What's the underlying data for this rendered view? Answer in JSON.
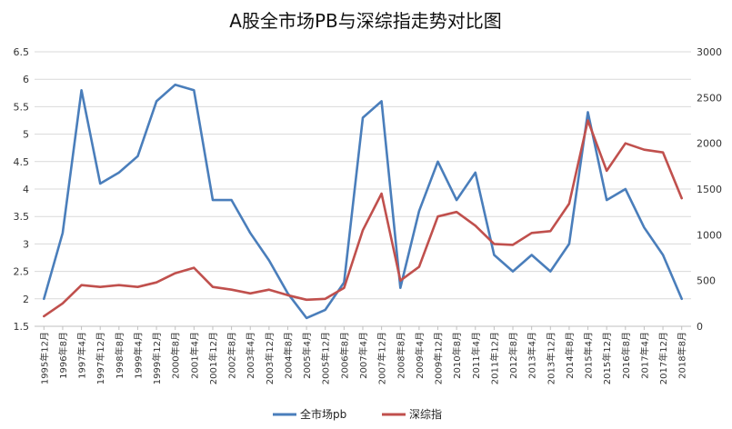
{
  "chart_data": {
    "type": "line",
    "title": "A股全市场PB与深综指走势对比图",
    "x": [
      "1995年12月",
      "1996年8月",
      "1997年4月",
      "1997年12月",
      "1998年8月",
      "1999年4月",
      "1999年12月",
      "2000年8月",
      "2001年4月",
      "2001年12月",
      "2002年8月",
      "2003年4月",
      "2003年12月",
      "2004年8月",
      "2005年4月",
      "2005年12月",
      "2006年8月",
      "2007年4月",
      "2007年12月",
      "2008年8月",
      "2009年4月",
      "2009年12月",
      "2010年8月",
      "2011年4月",
      "2011年12月",
      "2012年8月",
      "2013年4月",
      "2013年12月",
      "2014年8月",
      "2015年4月",
      "2015年12月",
      "2016年8月",
      "2017年4月",
      "2017年12月",
      "2018年8月"
    ],
    "y_left": {
      "ticks": [
        "1.5",
        "2",
        "2.5",
        "3",
        "3.5",
        "4",
        "4.5",
        "5",
        "5.5",
        "6",
        "6.5"
      ],
      "ylim": [
        1.5,
        6.5
      ]
    },
    "y_right": {
      "ticks": [
        "0",
        "500",
        "1000",
        "1500",
        "2000",
        "2500",
        "3000"
      ],
      "ylim": [
        0,
        3000
      ]
    },
    "grid": "horizontal",
    "legend_position": "bottom-center",
    "series": [
      {
        "name": "全市场pb",
        "color": "#4a7ebb",
        "axis": "left",
        "values": [
          2.0,
          3.2,
          5.8,
          4.1,
          4.3,
          4.6,
          5.6,
          5.9,
          5.8,
          3.8,
          3.8,
          3.2,
          2.7,
          2.1,
          1.65,
          1.8,
          2.3,
          5.3,
          5.6,
          2.2,
          3.6,
          4.5,
          3.8,
          4.3,
          2.8,
          2.5,
          2.8,
          2.5,
          3.0,
          5.4,
          3.8,
          4.0,
          3.3,
          2.8,
          2.0
        ]
      },
      {
        "name": "深综指",
        "color": "#c0504d",
        "axis": "right",
        "values": [
          110,
          250,
          450,
          430,
          450,
          430,
          480,
          580,
          640,
          430,
          400,
          360,
          400,
          340,
          290,
          300,
          420,
          1050,
          1450,
          500,
          650,
          1200,
          1250,
          1100,
          900,
          890,
          1020,
          1040,
          1340,
          2250,
          1700,
          2000,
          1930,
          1900,
          1400
        ]
      }
    ]
  }
}
